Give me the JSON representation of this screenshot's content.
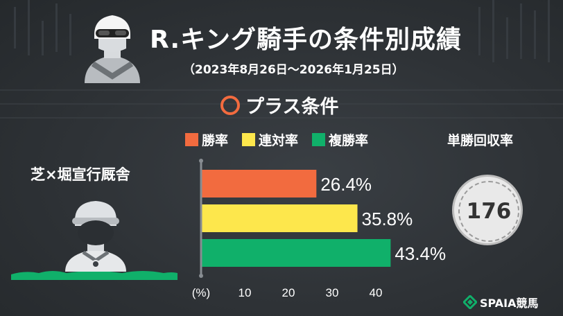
{
  "title": "R.キング騎手の条件別成績",
  "subtitle": "（2023年8月26日～2026年1月25日）",
  "section_label": "プラス条件",
  "condition_label": "芝×堀宣行厩舎",
  "roi": {
    "label": "単勝回収率",
    "value": "176"
  },
  "brand": "SPAIA競馬",
  "icons": [
    "jockey-avatar-icon",
    "jockey-portrait-icon",
    "spaia-logo-icon"
  ],
  "colors": {
    "background": "#2e3236",
    "win": "#f26b3f",
    "quinella": "#fde74c",
    "place": "#10b06a"
  },
  "chart_data": {
    "type": "bar",
    "orientation": "horizontal",
    "categories": [
      "勝率",
      "連対率",
      "複勝率"
    ],
    "values": [
      26.4,
      35.8,
      43.4
    ],
    "value_labels": [
      "26.4%",
      "35.8%",
      "43.4%"
    ],
    "unit_label": "(%)",
    "xlim": [
      0,
      40
    ],
    "x_ticks": [
      "10",
      "20",
      "30",
      "40"
    ],
    "legend": [
      {
        "label": "勝率",
        "color": "#f26b3f"
      },
      {
        "label": "連対率",
        "color": "#fde74c"
      },
      {
        "label": "複勝率",
        "color": "#10b06a"
      }
    ],
    "legend_position": "top"
  }
}
